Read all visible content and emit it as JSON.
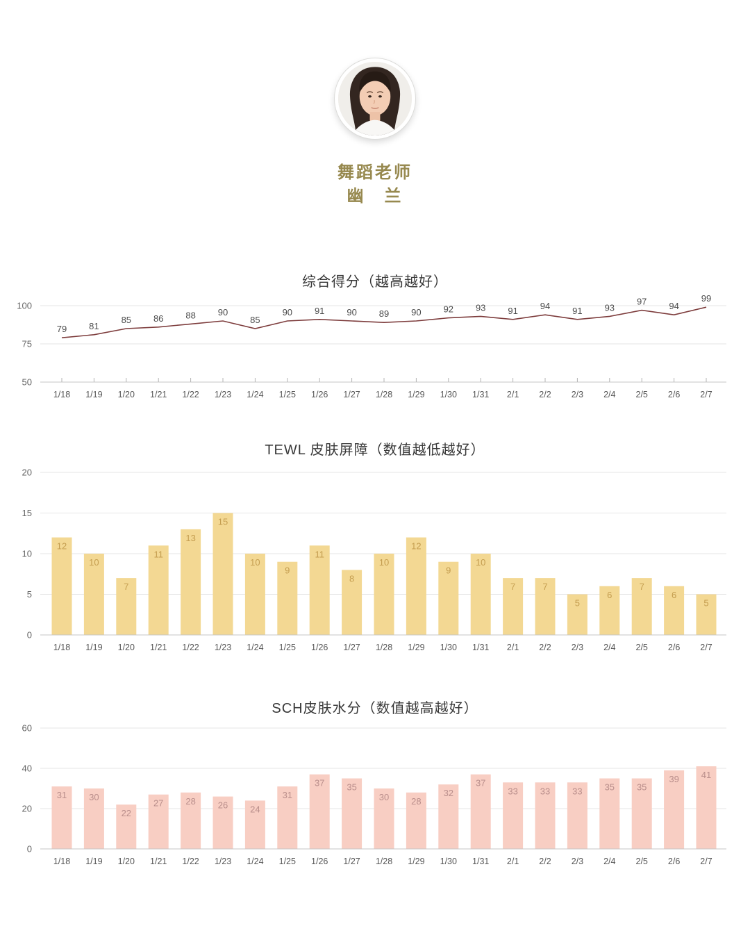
{
  "profile": {
    "role": "舞蹈老师",
    "name": "幽　兰",
    "name_color": "#97894f"
  },
  "chart_data": [
    {
      "type": "line",
      "title": "综合得分（越高越好）",
      "categories": [
        "1/18",
        "1/19",
        "1/20",
        "1/21",
        "1/22",
        "1/23",
        "1/24",
        "1/25",
        "1/26",
        "1/27",
        "1/28",
        "1/29",
        "1/30",
        "1/31",
        "2/1",
        "2/2",
        "2/3",
        "2/4",
        "2/5",
        "2/6",
        "2/7"
      ],
      "values": [
        79,
        81,
        85,
        86,
        88,
        90,
        85,
        90,
        91,
        90,
        89,
        90,
        92,
        93,
        91,
        94,
        91,
        93,
        97,
        94,
        99
      ],
      "ylim": [
        50,
        100
      ],
      "yticks": [
        50,
        75,
        100
      ],
      "grid": true,
      "legend": "none",
      "line_color": "#7d3c3c",
      "label_color": "#4a4a4a"
    },
    {
      "type": "bar",
      "title": "TEWL 皮肤屏障（数值越低越好）",
      "categories": [
        "1/18",
        "1/19",
        "1/20",
        "1/21",
        "1/22",
        "1/23",
        "1/24",
        "1/25",
        "1/26",
        "1/27",
        "1/28",
        "1/29",
        "1/30",
        "1/31",
        "2/1",
        "2/2",
        "2/3",
        "2/4",
        "2/5",
        "2/6",
        "2/7"
      ],
      "values": [
        12,
        10,
        7,
        11,
        13,
        15,
        10,
        9,
        11,
        8,
        10,
        12,
        9,
        10,
        7,
        7,
        5,
        6,
        7,
        6,
        5
      ],
      "ylim": [
        0,
        20
      ],
      "yticks": [
        0,
        5,
        10,
        15,
        20
      ],
      "grid": true,
      "legend": "none",
      "bar_color": "#f3d893",
      "label_color": "#c49d4f"
    },
    {
      "type": "bar",
      "title": "SCH皮肤水分（数值越高越好）",
      "categories": [
        "1/18",
        "1/19",
        "1/20",
        "1/21",
        "1/22",
        "1/23",
        "1/24",
        "1/25",
        "1/26",
        "1/27",
        "1/28",
        "1/29",
        "1/30",
        "1/31",
        "2/1",
        "2/2",
        "2/3",
        "2/4",
        "2/5",
        "2/6",
        "2/7"
      ],
      "values": [
        31,
        30,
        22,
        27,
        28,
        26,
        24,
        31,
        37,
        35,
        30,
        28,
        32,
        37,
        33,
        33,
        33,
        35,
        35,
        39,
        41
      ],
      "ylim": [
        0,
        60
      ],
      "yticks": [
        0,
        20,
        40,
        60
      ],
      "grid": true,
      "legend": "none",
      "bar_color": "#f8cec3",
      "label_color": "#b98e8b"
    }
  ]
}
